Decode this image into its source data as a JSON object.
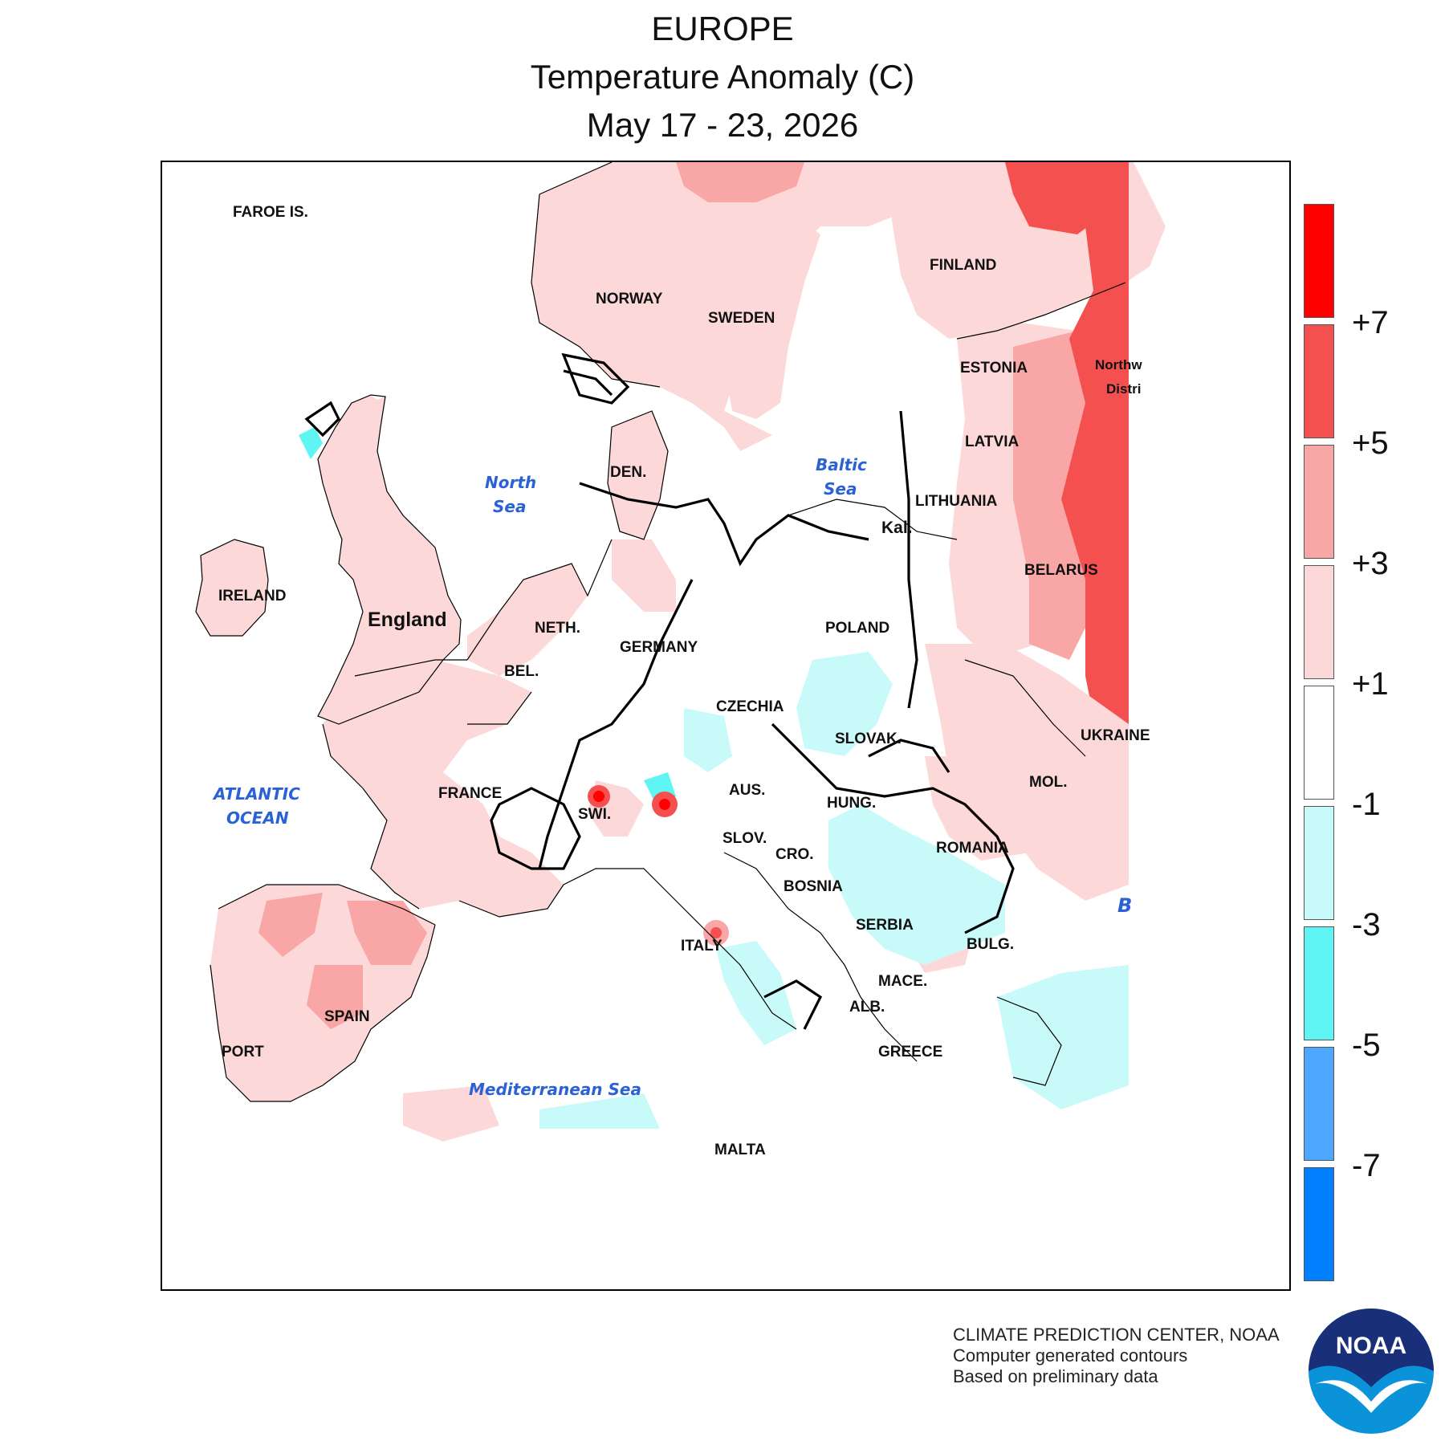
{
  "title": {
    "region": "EUROPE",
    "variable": "Temperature Anomaly (C)",
    "period": "May 17 - 23, 2026"
  },
  "legend": {
    "ticks": [
      "+7",
      "+5",
      "+3",
      "+1",
      "-1",
      "-3",
      "-5",
      "-7"
    ],
    "colors": [
      "#ff0000",
      "#f45050",
      "#f9a6a6",
      "#fcd8d8",
      "#ffffff",
      "#c8fafa",
      "#5ff5f5",
      "#4da6ff",
      "#0080ff"
    ]
  },
  "palette": {
    "cold1": "#c8fafa",
    "cold2": "#5ff5f5",
    "warm1": "#fcd8d8",
    "warm2": "#f9a6a6",
    "warm3": "#f45050",
    "warm4": "#ff0000",
    "sea_label": "#2a62d6"
  },
  "map": {
    "countries": {
      "faroe": "FAROE IS.",
      "norway": "NORWAY",
      "sweden": "SWEDEN",
      "finland": "FINLAND",
      "estonia": "ESTONIA",
      "latvia": "LATVIA",
      "lithuania": "LITHUANIA",
      "kal": "Kal.",
      "belarus": "BELARUS",
      "ireland": "IRELAND",
      "england": "England",
      "den": "DEN.",
      "neth": "NETH.",
      "bel": "BEL.",
      "germany": "GERMANY",
      "poland": "POLAND",
      "czechia": "CZECHIA",
      "slovak": "SLOVAK.",
      "ukraine": "UKRAINE",
      "mol": "MOL.",
      "france": "FRANCE",
      "aus": "AUS.",
      "hung": "HUNG.",
      "swi": "SWI.",
      "slov": "SLOV.",
      "cro": "CRO.",
      "romania": "ROMANIA",
      "bosnia": "BOSNIA",
      "serbia": "SERBIA",
      "italy": "ITALY",
      "bulg": "BULG.",
      "mace": "MACE.",
      "alb": "ALB.",
      "spain": "SPAIN",
      "port": "PORT",
      "greece": "GREECE",
      "malta": "MALTA",
      "northwest_1": "Northw",
      "northwest_2": "Distri",
      "b_edge": "B"
    },
    "seas": {
      "north_1": "North",
      "north_2": "Sea",
      "baltic_1": "Baltic",
      "baltic_2": "Sea",
      "atlantic_1": "ATLANTIC",
      "atlantic_2": "OCEAN",
      "med": "Mediterranean Sea"
    }
  },
  "credits": {
    "line1": "CLIMATE PREDICTION CENTER, NOAA",
    "line2": "Computer generated contours",
    "line3": "Based on preliminary data"
  },
  "logo": {
    "text": "NOAA"
  }
}
